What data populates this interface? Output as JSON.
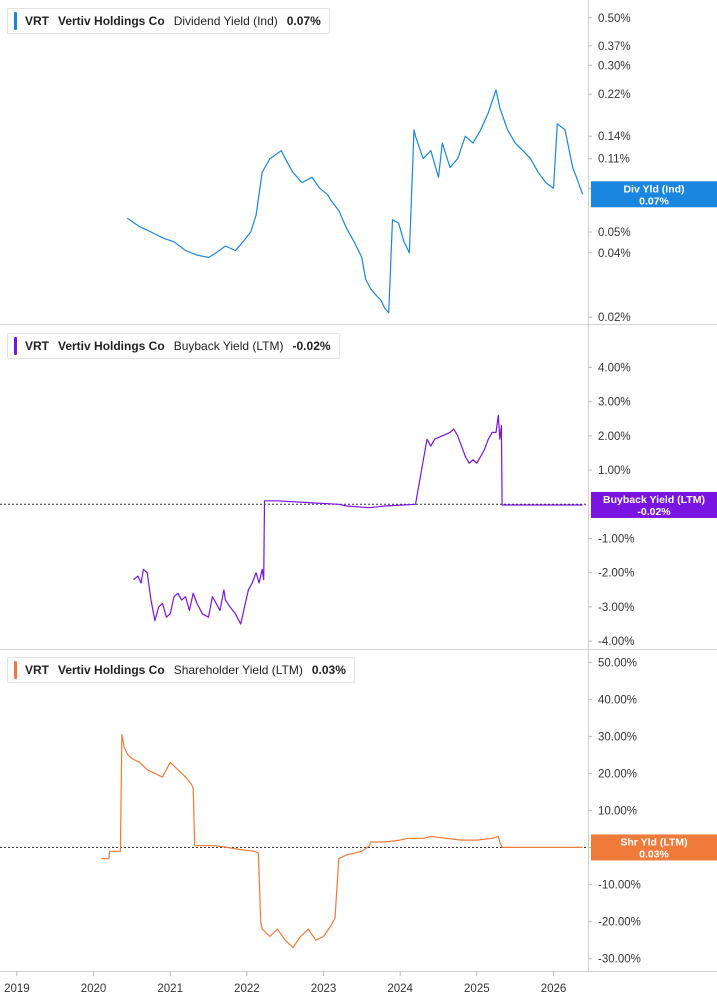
{
  "chart_data": [
    {
      "type": "line",
      "ticker": "VRT",
      "company": "Vertiv Holdings Co",
      "metric": "Dividend Yield (Ind)",
      "current_value": "0.07%",
      "flag_label": "Div Yld (Ind)",
      "flag_value": "0.07%",
      "color": "#1a86e0",
      "scale": "log",
      "ylim": [
        0.019,
        0.58
      ],
      "y_ticks": [
        "0.50%",
        "0.37%",
        "0.30%",
        "0.22%",
        "0.14%",
        "0.11%",
        "0.08%",
        "0.05%",
        "0.04%",
        "0.02%"
      ],
      "y_tick_values": [
        0.5,
        0.37,
        0.3,
        0.22,
        0.14,
        0.11,
        0.08,
        0.05,
        0.04,
        0.02
      ],
      "x": [
        2020.44,
        2020.6,
        2020.75,
        2020.9,
        2021.05,
        2021.2,
        2021.35,
        2021.5,
        2021.6,
        2021.72,
        2021.85,
        2021.95,
        2022.05,
        2022.12,
        2022.2,
        2022.3,
        2022.45,
        2022.5,
        2022.6,
        2022.72,
        2022.85,
        2022.95,
        2023.05,
        2023.1,
        2023.2,
        2023.3,
        2023.4,
        2023.5,
        2023.55,
        2023.62,
        2023.7,
        2023.75,
        2023.8,
        2023.85,
        2023.9,
        2023.98,
        2024.05,
        2024.12,
        2024.18,
        2024.2,
        2024.3,
        2024.4,
        2024.5,
        2024.55,
        2024.65,
        2024.75,
        2024.85,
        2024.95,
        2025.05,
        2025.15,
        2025.25,
        2025.3,
        2025.4,
        2025.5,
        2025.6,
        2025.7,
        2025.8,
        2025.9,
        2026.0,
        2026.05,
        2026.15,
        2026.25,
        2026.3,
        2026.38
      ],
      "y": [
        0.058,
        0.053,
        0.05,
        0.047,
        0.045,
        0.041,
        0.039,
        0.038,
        0.04,
        0.043,
        0.041,
        0.045,
        0.05,
        0.06,
        0.095,
        0.11,
        0.12,
        0.11,
        0.095,
        0.085,
        0.09,
        0.08,
        0.075,
        0.07,
        0.063,
        0.052,
        0.045,
        0.038,
        0.03,
        0.027,
        0.025,
        0.024,
        0.022,
        0.021,
        0.057,
        0.055,
        0.045,
        0.04,
        0.15,
        0.14,
        0.11,
        0.12,
        0.09,
        0.13,
        0.1,
        0.11,
        0.14,
        0.13,
        0.15,
        0.18,
        0.23,
        0.19,
        0.15,
        0.13,
        0.12,
        0.11,
        0.095,
        0.085,
        0.08,
        0.16,
        0.15,
        0.1,
        0.09,
        0.075
      ]
    },
    {
      "type": "line",
      "ticker": "VRT",
      "company": "Vertiv Holdings Co",
      "metric": "Buyback Yield (LTM)",
      "current_value": "-0.02%",
      "flag_label": "Buyback Yield (LTM)",
      "flag_value": "-0.02%",
      "color": "#7a14e0",
      "scale": "linear",
      "ylim": [
        -4.2,
        4.8
      ],
      "y_ticks": [
        "4.00%",
        "3.00%",
        "2.00%",
        "1.00%",
        "-1.00%",
        "-2.00%",
        "-3.00%",
        "-4.00%"
      ],
      "y_tick_values": [
        4,
        3,
        2,
        1,
        -1,
        -2,
        -3,
        -4
      ],
      "x": [
        2020.52,
        2020.58,
        2020.62,
        2020.65,
        2020.7,
        2020.75,
        2020.8,
        2020.85,
        2020.9,
        2020.95,
        2021.0,
        2021.05,
        2021.1,
        2021.15,
        2021.2,
        2021.25,
        2021.3,
        2021.35,
        2021.42,
        2021.5,
        2021.55,
        2021.6,
        2021.65,
        2021.7,
        2021.72,
        2021.78,
        2021.85,
        2021.92,
        2021.97,
        2022.02,
        2022.07,
        2022.12,
        2022.16,
        2022.2,
        2022.22,
        2022.23,
        2022.4,
        2022.8,
        2023.2,
        2023.3,
        2023.6,
        2023.8,
        2024.2,
        2024.35,
        2024.4,
        2024.45,
        2024.55,
        2024.65,
        2024.7,
        2024.75,
        2024.8,
        2024.85,
        2024.9,
        2024.95,
        2025.0,
        2025.05,
        2025.1,
        2025.15,
        2025.2,
        2025.25,
        2025.28,
        2025.3,
        2025.32,
        2025.33,
        2025.6,
        2026.0,
        2026.38
      ],
      "y": [
        -2.2,
        -2.1,
        -2.3,
        -1.9,
        -2.0,
        -2.8,
        -3.4,
        -3.0,
        -2.9,
        -3.3,
        -3.2,
        -2.7,
        -2.6,
        -2.8,
        -2.7,
        -3.1,
        -2.6,
        -2.9,
        -3.2,
        -3.3,
        -2.7,
        -2.9,
        -3.1,
        -2.5,
        -2.8,
        -3.0,
        -3.2,
        -3.5,
        -3.0,
        -2.5,
        -2.3,
        -2.0,
        -2.3,
        -1.9,
        -2.2,
        0.1,
        0.1,
        0.05,
        0.0,
        -0.05,
        -0.1,
        -0.05,
        0.0,
        1.9,
        1.7,
        1.9,
        2.0,
        2.1,
        2.2,
        2.0,
        1.7,
        1.4,
        1.2,
        1.3,
        1.2,
        1.4,
        1.6,
        1.9,
        2.1,
        2.1,
        2.6,
        1.9,
        2.3,
        -0.02,
        -0.02,
        -0.02,
        -0.02
      ]
    },
    {
      "type": "line",
      "ticker": "VRT",
      "company": "Vertiv Holdings Co",
      "metric": "Shareholder Yield (LTM)",
      "current_value": "0.03%",
      "flag_label": "Shr Yld (LTM)",
      "flag_value": "0.03%",
      "color": "#f07a3a",
      "scale": "linear",
      "ylim": [
        -32.5,
        52.5
      ],
      "y_ticks": [
        "50.00%",
        "40.00%",
        "30.00%",
        "20.00%",
        "10.00%",
        "0.00%",
        "-10.00%",
        "-20.00%",
        "-30.00%"
      ],
      "y_tick_values": [
        50,
        40,
        30,
        20,
        10,
        0,
        -10,
        -20,
        -30
      ],
      "x": [
        2020.1,
        2020.2,
        2020.21,
        2020.35,
        2020.37,
        2020.4,
        2020.45,
        2020.5,
        2020.6,
        2020.7,
        2020.8,
        2020.9,
        2021.0,
        2021.1,
        2021.2,
        2021.28,
        2021.3,
        2021.32,
        2021.6,
        2021.9,
        2022.1,
        2022.15,
        2022.18,
        2022.2,
        2022.3,
        2022.4,
        2022.5,
        2022.6,
        2022.7,
        2022.8,
        2022.9,
        2023.0,
        2023.1,
        2023.15,
        2023.2,
        2023.3,
        2023.5,
        2023.6,
        2023.62,
        2023.8,
        2024.0,
        2024.1,
        2024.3,
        2024.4,
        2024.6,
        2024.8,
        2025.0,
        2025.2,
        2025.28,
        2025.3,
        2025.33,
        2025.6,
        2026.0,
        2026.38
      ],
      "y": [
        -3.0,
        -3.0,
        -1.0,
        -1.0,
        30.5,
        27.0,
        25.0,
        24.0,
        23.0,
        21.0,
        20.0,
        19.0,
        23.0,
        21.0,
        19.0,
        17.0,
        16.0,
        0.5,
        0.5,
        -0.5,
        -1.0,
        -1.5,
        -20.0,
        -22.0,
        -24.0,
        -22.0,
        -25.0,
        -27.0,
        -24.0,
        -22.0,
        -25.0,
        -24.0,
        -21.0,
        -19.0,
        -3.0,
        -2.0,
        -1.0,
        0.5,
        1.5,
        1.5,
        2.0,
        2.5,
        2.5,
        3.0,
        2.5,
        2.0,
        2.0,
        2.5,
        3.0,
        1.5,
        0.03,
        0.03,
        0.03,
        0.03
      ]
    }
  ],
  "x_axis": {
    "labels": [
      "2019",
      "2020",
      "2021",
      "2022",
      "2023",
      "2024",
      "2025",
      "2026"
    ],
    "values": [
      2019,
      2020,
      2021,
      2022,
      2023,
      2024,
      2025,
      2026
    ],
    "xlim": [
      2018.78,
      2026.45
    ]
  }
}
